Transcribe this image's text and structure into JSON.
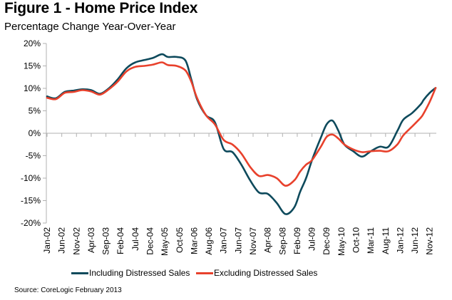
{
  "header": {
    "title": "Figure 1 - Home Price Index",
    "subtitle": "Percentage Change Year-Over-Year"
  },
  "source": "Source: CoreLogic  February 2013",
  "chart_data": {
    "type": "line",
    "title": "Figure 1 - Home Price Index",
    "subtitle": "Percentage Change Year-Over-Year",
    "xlabel": "",
    "ylabel": "",
    "ylim": [
      -20,
      20
    ],
    "yticks": [
      20,
      15,
      10,
      5,
      0,
      -5,
      -10,
      -15,
      -20
    ],
    "ytick_labels": [
      "20%",
      "15%",
      "10%",
      "5%",
      "0%",
      "-5%",
      "-10%",
      "-15%",
      "-20%"
    ],
    "xtick_labels": [
      "Jan-02",
      "Jun-02",
      "Nov-02",
      "Apr-03",
      "Sep-03",
      "Feb-04",
      "Jul-04",
      "Dec-04",
      "May-05",
      "Oct-05",
      "Mar-06",
      "Aug-06",
      "Jan-07",
      "Jun-07",
      "Nov-07",
      "Apr-08",
      "Sep-08",
      "Feb-09",
      "Jul-09",
      "Dec-09",
      "May-10",
      "Oct-10",
      "Mar-11",
      "Aug-11",
      "Jan-12",
      "Jun-12",
      "Nov-12"
    ],
    "x_start": "Jan-02",
    "x_unit": "months since Jan-02",
    "grid": false,
    "legend_position": "bottom",
    "colors": {
      "including": "#0e4a5c",
      "excluding": "#e8412c",
      "axis": "#b0b0b0"
    },
    "series": [
      {
        "name": "Including Distressed Sales",
        "x": [
          0,
          3,
          6,
          9,
          12,
          15,
          18,
          21,
          24,
          27,
          30,
          33,
          36,
          39,
          41,
          44,
          47,
          49,
          51,
          54,
          57,
          60,
          63,
          66,
          69,
          72,
          75,
          78,
          81,
          84,
          86,
          88,
          90,
          93,
          95,
          97,
          99,
          101,
          104,
          107,
          110,
          113,
          116,
          119,
          121,
          124,
          127,
          128,
          130,
          132
        ],
        "values": [
          8.2,
          7.8,
          9.2,
          9.5,
          9.8,
          9.6,
          8.8,
          10.0,
          12.0,
          14.5,
          15.8,
          16.3,
          16.8,
          17.6,
          17.0,
          17.0,
          16.2,
          12.0,
          7.5,
          4.0,
          2.5,
          -3.5,
          -4.2,
          -7.0,
          -10.5,
          -13.2,
          -13.5,
          -15.5,
          -18.0,
          -16.5,
          -13.0,
          -10.0,
          -6.0,
          -1.0,
          2.0,
          2.8,
          0.5,
          -2.5,
          -4.0,
          -5.2,
          -4.0,
          -3.0,
          -3.0,
          0.5,
          3.0,
          4.5,
          6.5,
          7.5,
          9.0,
          10.1
        ]
      },
      {
        "name": "Excluding Distressed Sales",
        "x": [
          0,
          3,
          6,
          9,
          12,
          15,
          18,
          21,
          24,
          27,
          30,
          33,
          36,
          39,
          41,
          44,
          47,
          49,
          51,
          54,
          57,
          60,
          63,
          66,
          69,
          72,
          75,
          78,
          81,
          84,
          86,
          88,
          90,
          93,
          95,
          97,
          99,
          101,
          104,
          107,
          110,
          113,
          116,
          119,
          121,
          124,
          127,
          128,
          130,
          132
        ],
        "values": [
          7.9,
          7.6,
          9.0,
          9.2,
          9.6,
          9.3,
          8.6,
          9.8,
          11.5,
          13.8,
          14.8,
          15.0,
          15.3,
          15.8,
          15.2,
          15.0,
          14.0,
          11.5,
          7.8,
          4.0,
          2.0,
          -1.5,
          -2.5,
          -4.5,
          -7.5,
          -9.5,
          -9.3,
          -10.0,
          -11.7,
          -10.5,
          -8.5,
          -7.0,
          -6.0,
          -3.0,
          -0.8,
          -0.3,
          -1.2,
          -2.5,
          -3.6,
          -4.2,
          -4.0,
          -3.9,
          -4.0,
          -2.5,
          -0.5,
          1.5,
          3.5,
          4.5,
          7.0,
          10.1
        ]
      }
    ]
  }
}
